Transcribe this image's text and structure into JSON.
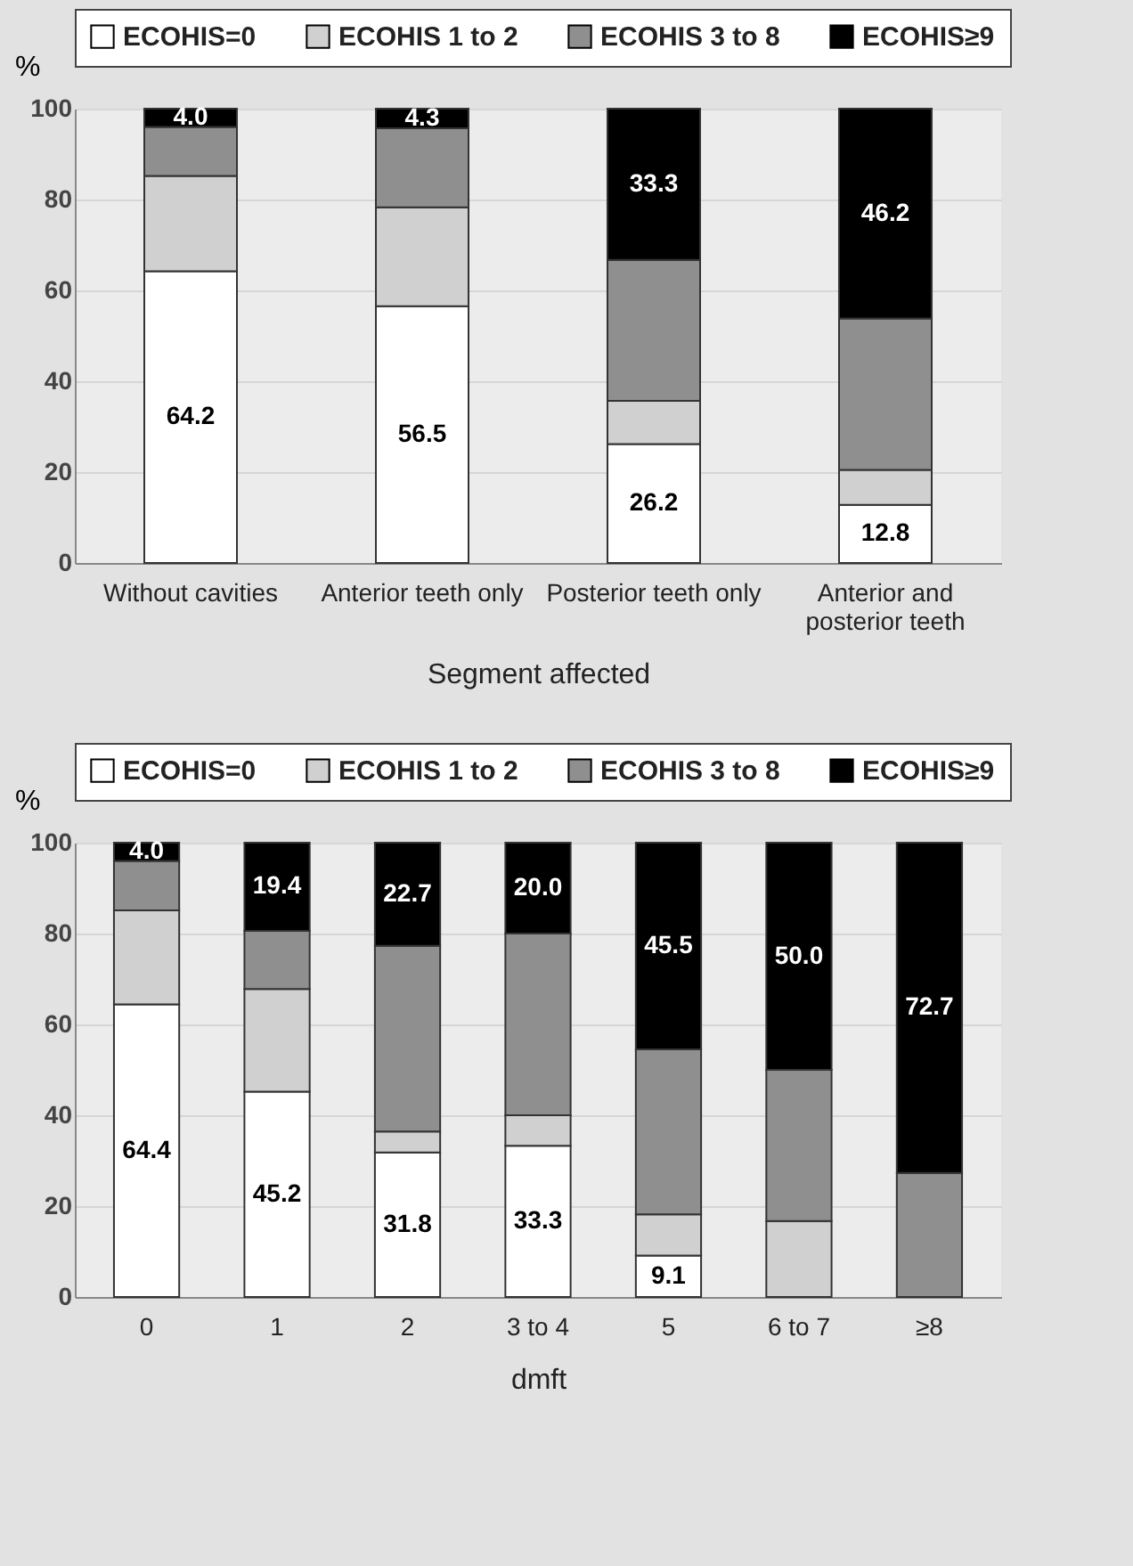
{
  "chart_data": [
    {
      "type": "bar",
      "stacked": true,
      "categories": [
        "Without cavities",
        "Anterior teeth only",
        "Posterior teeth only",
        "Anterior and posterior teeth"
      ],
      "xlabel": "Segment affected",
      "ylabel": "%",
      "ylim": [
        0,
        100
      ],
      "yticks": [
        0,
        20,
        40,
        60,
        80,
        100
      ],
      "grid": "y",
      "legend": "top",
      "series": [
        {
          "name": "ECOHIS=0",
          "color": "#ffffff",
          "values": [
            64.2,
            56.5,
            26.2,
            12.8
          ],
          "value_labels": [
            "64.2",
            "56.5",
            "26.2",
            "12.8"
          ]
        },
        {
          "name": "ECOHIS 1 to 2",
          "color": "#d0d0d0",
          "values": [
            21.0,
            21.8,
            9.5,
            7.7
          ],
          "value_labels": [
            null,
            null,
            null,
            null
          ]
        },
        {
          "name": "ECOHIS 3 to 8",
          "color": "#8f8f8f",
          "values": [
            10.8,
            17.4,
            31.0,
            33.3
          ],
          "value_labels": [
            null,
            null,
            null,
            null
          ]
        },
        {
          "name": "ECOHIS≥9",
          "color": "#000000",
          "values": [
            4.0,
            4.3,
            33.3,
            46.2
          ],
          "value_labels": [
            "4.0",
            "4.3",
            "33.3",
            "46.2"
          ]
        }
      ]
    },
    {
      "type": "bar",
      "stacked": true,
      "categories": [
        "0",
        "1",
        "2",
        "3 to 4",
        "5",
        "6 to 7",
        "≥8"
      ],
      "xlabel": "dmft",
      "ylabel": "%",
      "ylim": [
        0,
        100
      ],
      "yticks": [
        0,
        20,
        40,
        60,
        80,
        100
      ],
      "grid": "y",
      "legend": "top",
      "series": [
        {
          "name": "ECOHIS=0",
          "color": "#ffffff",
          "values": [
            64.4,
            45.2,
            31.8,
            33.3,
            9.1,
            0,
            0
          ],
          "value_labels": [
            "64.4",
            "45.2",
            "31.8",
            "33.3",
            "9.1",
            null,
            null
          ]
        },
        {
          "name": "ECOHIS 1 to 2",
          "color": "#d0d0d0",
          "values": [
            20.7,
            22.6,
            4.6,
            6.7,
            9.1,
            16.7,
            0
          ],
          "value_labels": [
            null,
            null,
            null,
            null,
            null,
            null,
            null
          ]
        },
        {
          "name": "ECOHIS 3 to 8",
          "color": "#8f8f8f",
          "values": [
            10.9,
            12.8,
            40.9,
            40.0,
            36.3,
            33.3,
            27.3
          ],
          "value_labels": [
            null,
            null,
            null,
            null,
            null,
            null,
            null
          ]
        },
        {
          "name": "ECOHIS≥9",
          "color": "#000000",
          "values": [
            4.0,
            19.4,
            22.7,
            20.0,
            45.5,
            50.0,
            72.7
          ],
          "value_labels": [
            "4.0",
            "19.4",
            "22.7",
            "20.0",
            "45.5",
            "50.0",
            "72.7"
          ]
        }
      ]
    }
  ]
}
